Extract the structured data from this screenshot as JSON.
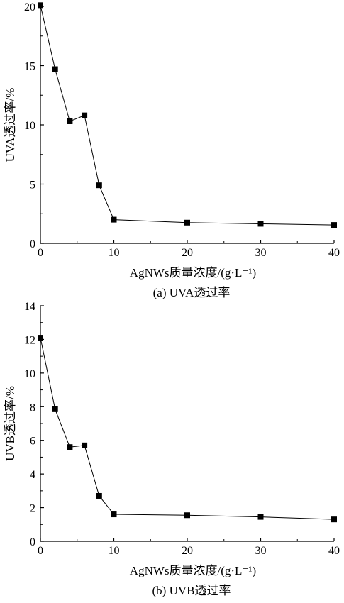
{
  "chart_data": [
    {
      "type": "line",
      "caption": "(a) UVA透过率",
      "xlabel": "AgNWs质量浓度/(g·L⁻¹)",
      "ylabel": "UVA透过率/%",
      "xlim": [
        0,
        40
      ],
      "ylim": [
        0,
        20
      ],
      "xticks": [
        0,
        10,
        20,
        30,
        40
      ],
      "yticks": [
        0,
        5,
        10,
        15,
        20
      ],
      "grid": false,
      "marker": "square",
      "series": [
        {
          "x": [
            0,
            2,
            4,
            6,
            8,
            10,
            20,
            30,
            40
          ],
          "y": [
            20.1,
            14.7,
            10.3,
            10.8,
            4.9,
            2.0,
            1.75,
            1.65,
            1.55
          ]
        }
      ]
    },
    {
      "type": "line",
      "caption": "(b) UVB透过率",
      "xlabel": "AgNWs质量浓度/(g·L⁻¹)",
      "ylabel": "UVB透过率/%",
      "xlim": [
        0,
        40
      ],
      "ylim": [
        0,
        14
      ],
      "xticks": [
        0,
        10,
        20,
        30,
        40
      ],
      "yticks": [
        0,
        2,
        4,
        6,
        8,
        10,
        12,
        14
      ],
      "grid": false,
      "marker": "square",
      "series": [
        {
          "x": [
            0,
            2,
            4,
            6,
            8,
            10,
            20,
            30,
            40
          ],
          "y": [
            12.1,
            7.85,
            5.6,
            5.7,
            2.7,
            1.6,
            1.55,
            1.45,
            1.3
          ]
        }
      ]
    }
  ]
}
